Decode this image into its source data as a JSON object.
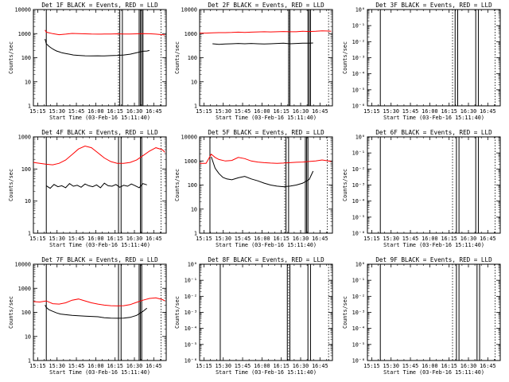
{
  "figure": {
    "xlabel": "Start Time (03-Feb-16 15:11:40)",
    "ylabel": "Counts/sec",
    "time_ticks": [
      "15:15",
      "15:30",
      "15:45",
      "16:00",
      "16:15",
      "16:30",
      "16:45"
    ],
    "log_ticks_main": [
      "1",
      "10",
      "100",
      "1000",
      "10000"
    ],
    "log_ticks_small": [
      "10⁰",
      "10⁻¹",
      "10⁻²",
      "10⁻³",
      "10⁻⁴",
      "10⁻⁵",
      "10⁻⁶"
    ]
  },
  "chart_data": [
    {
      "type": "line",
      "title": "Det 1F BLACK = Events, RED = LLD",
      "xlabel": "Start Time (03-Feb-16 15:11:40)",
      "ylabel": "Counts/sec",
      "x_unit": "minutes after 15:11:40",
      "xlim": [
        0,
        103
      ],
      "yscale": "log",
      "ylim": [
        1,
        10000
      ],
      "series": [
        {
          "color": "#000000",
          "x": [
            9,
            10,
            12,
            14,
            16,
            18,
            20,
            22,
            25,
            28,
            31,
            35,
            40,
            45,
            50,
            55,
            60,
            65,
            70,
            75,
            80,
            85,
            88,
            90
          ],
          "values": [
            600,
            380,
            300,
            250,
            215,
            190,
            175,
            160,
            150,
            140,
            130,
            125,
            120,
            118,
            120,
            118,
            122,
            125,
            130,
            140,
            160,
            185,
            190,
            200
          ]
        },
        {
          "color": "#ff0000",
          "x": [
            9,
            10,
            15,
            20,
            25,
            30,
            35,
            40,
            45,
            50,
            55,
            60,
            65,
            70,
            75,
            80,
            85,
            90,
            95,
            100,
            102
          ],
          "values": [
            1400,
            1150,
            1000,
            900,
            950,
            1020,
            1000,
            980,
            960,
            950,
            960,
            960,
            980,
            960,
            970,
            980,
            1000,
            990,
            950,
            900,
            880
          ]
        }
      ],
      "vlines_solid": [
        10,
        67,
        69,
        82,
        83,
        84,
        85
      ],
      "vlines_dotted": [
        66,
        99
      ]
    },
    {
      "type": "line",
      "title": "Det 2F BLACK = Events, RED = LLD",
      "xlabel": "Start Time (03-Feb-16 15:11:40)",
      "ylabel": "Counts/sec",
      "x_unit": "minutes after 15:11:40",
      "xlim": [
        0,
        103
      ],
      "yscale": "log",
      "ylim": [
        1,
        10000
      ],
      "series": [
        {
          "color": "#000000",
          "x": [
            10,
            15,
            20,
            25,
            30,
            35,
            40,
            45,
            50,
            55,
            60,
            65,
            70,
            75,
            80,
            85,
            88
          ],
          "values": [
            380,
            360,
            370,
            380,
            390,
            380,
            390,
            380,
            370,
            380,
            390,
            400,
            380,
            390,
            400,
            400,
            410
          ]
        },
        {
          "color": "#ff0000",
          "x": [
            0,
            5,
            10,
            15,
            20,
            25,
            30,
            35,
            40,
            45,
            50,
            55,
            60,
            65,
            70,
            75,
            80,
            85,
            90,
            95,
            100,
            102
          ],
          "values": [
            1050,
            1050,
            1080,
            1100,
            1100,
            1120,
            1150,
            1120,
            1150,
            1180,
            1200,
            1180,
            1200,
            1220,
            1200,
            1200,
            1250,
            1220,
            1250,
            1300,
            1280,
            1250
          ]
        }
      ],
      "vlines_solid": [
        69,
        70,
        84,
        85,
        86
      ],
      "vlines_dotted": [
        69,
        100
      ]
    },
    {
      "type": "line",
      "title": "Det 3F BLACK = Events, RED = LLD",
      "xlabel": "Start Time (03-Feb-16 15:11:40)",
      "ylabel": "Counts/sec",
      "x_unit": "minutes after 15:11:40",
      "xlim": [
        0,
        103
      ],
      "yscale": "log",
      "ylim": [
        1e-06,
        1
      ],
      "series": [],
      "vlines_solid": [
        10,
        68,
        70,
        84,
        86
      ],
      "vlines_dotted": [
        66,
        99
      ]
    },
    {
      "type": "line",
      "title": "Det 4F BLACK = Events, RED = LLD",
      "xlabel": "Start Time (03-Feb-16 15:11:40)",
      "ylabel": "Counts/sec",
      "x_unit": "minutes after 15:11:40",
      "xlim": [
        0,
        103
      ],
      "yscale": "log",
      "ylim": [
        1,
        1000
      ],
      "series": [
        {
          "color": "#000000",
          "x": [
            10,
            13,
            16,
            19,
            22,
            25,
            28,
            31,
            34,
            37,
            40,
            43,
            46,
            49,
            52,
            55,
            58,
            61,
            64,
            67,
            70,
            73,
            76,
            79,
            82,
            85,
            88
          ],
          "values": [
            30,
            25,
            33,
            28,
            30,
            26,
            35,
            29,
            31,
            27,
            34,
            30,
            28,
            32,
            26,
            36,
            30,
            29,
            33,
            27,
            31,
            29,
            34,
            30,
            26,
            35,
            32
          ]
        },
        {
          "color": "#ff0000",
          "x": [
            0,
            5,
            10,
            15,
            20,
            25,
            30,
            35,
            40,
            45,
            50,
            55,
            60,
            65,
            70,
            75,
            80,
            85,
            90,
            95,
            100,
            102
          ],
          "values": [
            160,
            150,
            140,
            135,
            150,
            190,
            280,
            420,
            520,
            460,
            320,
            220,
            170,
            150,
            150,
            160,
            190,
            260,
            360,
            460,
            400,
            330
          ]
        }
      ],
      "vlines_solid": [
        10,
        66,
        68,
        83,
        84
      ],
      "vlines_dotted": [
        66,
        99
      ]
    },
    {
      "type": "line",
      "title": "Det 5F BLACK = Events, RED = LLD",
      "xlabel": "Start Time (03-Feb-16 15:11:40)",
      "ylabel": "Counts/sec",
      "x_unit": "minutes after 15:11:40",
      "xlim": [
        0,
        103
      ],
      "yscale": "log",
      "ylim": [
        1,
        10000
      ],
      "series": [
        {
          "color": "#000000",
          "x": [
            9,
            12,
            15,
            18,
            21,
            25,
            30,
            35,
            40,
            45,
            50,
            55,
            60,
            65,
            70,
            75,
            80,
            85,
            88
          ],
          "values": [
            1500,
            500,
            300,
            210,
            180,
            165,
            200,
            230,
            180,
            150,
            120,
            100,
            90,
            85,
            90,
            100,
            120,
            170,
            380
          ]
        },
        {
          "color": "#ff0000",
          "x": [
            0,
            5,
            9,
            12,
            15,
            20,
            25,
            30,
            35,
            40,
            45,
            50,
            55,
            60,
            65,
            70,
            75,
            80,
            85,
            90,
            95,
            100,
            102
          ],
          "values": [
            800,
            800,
            1900,
            1400,
            1150,
            1000,
            1050,
            1400,
            1250,
            1000,
            900,
            850,
            820,
            800,
            820,
            850,
            880,
            900,
            950,
            1000,
            1100,
            1000,
            950
          ]
        }
      ],
      "vlines_solid": [
        8,
        67,
        69,
        82,
        83,
        84
      ],
      "vlines_dotted": [
        66,
        99
      ]
    },
    {
      "type": "line",
      "title": "Det 6F BLACK = Events, RED = LLD",
      "xlabel": "Start Time (03-Feb-16 15:11:40)",
      "ylabel": "Counts/sec",
      "x_unit": "minutes after 15:11:40",
      "xlim": [
        0,
        103
      ],
      "yscale": "log",
      "ylim": [
        1e-06,
        1
      ],
      "series": [],
      "vlines_solid": [
        10,
        69,
        71,
        84,
        86
      ],
      "vlines_dotted": [
        66,
        99
      ]
    },
    {
      "type": "line",
      "title": "Det 7F BLACK = Events, RED = LLD",
      "xlabel": "Start Time (03-Feb-16 15:11:40)",
      "ylabel": "Counts/sec",
      "x_unit": "minutes after 15:11:40",
      "xlim": [
        0,
        103
      ],
      "yscale": "log",
      "ylim": [
        1,
        10000
      ],
      "series": [
        {
          "color": "#000000",
          "x": [
            9,
            10,
            12,
            15,
            18,
            21,
            25,
            30,
            35,
            40,
            45,
            50,
            55,
            60,
            65,
            70,
            75,
            80,
            85,
            88
          ],
          "values": [
            200,
            160,
            130,
            110,
            95,
            85,
            80,
            75,
            72,
            70,
            68,
            66,
            60,
            58,
            57,
            58,
            62,
            75,
            110,
            150
          ]
        },
        {
          "color": "#ff0000",
          "x": [
            0,
            5,
            10,
            15,
            20,
            25,
            30,
            35,
            40,
            45,
            50,
            55,
            60,
            65,
            70,
            75,
            80,
            85,
            90,
            95,
            100,
            102
          ],
          "values": [
            280,
            270,
            300,
            230,
            220,
            250,
            320,
            360,
            300,
            250,
            220,
            200,
            190,
            185,
            190,
            210,
            260,
            320,
            380,
            400,
            340,
            300
          ]
        }
      ],
      "vlines_solid": [
        10,
        66,
        68,
        82,
        83,
        84
      ],
      "vlines_dotted": [
        66,
        99
      ]
    },
    {
      "type": "line",
      "title": "Det 8F BLACK = Events, RED = LLD",
      "xlabel": "Start Time (03-Feb-16 15:11:40)",
      "ylabel": "Counts/sec",
      "x_unit": "minutes after 15:11:40",
      "xlim": [
        0,
        103
      ],
      "yscale": "log",
      "ylim": [
        1e-06,
        1
      ],
      "series": [],
      "vlines_solid": [
        16,
        68,
        70,
        84,
        86
      ],
      "vlines_dotted": [
        69,
        100
      ]
    },
    {
      "type": "line",
      "title": "Det 9F BLACK = Events, RED = LLD",
      "xlabel": "Start Time (03-Feb-16 15:11:40)",
      "ylabel": "Counts/sec",
      "x_unit": "minutes after 15:11:40",
      "xlim": [
        0,
        103
      ],
      "yscale": "log",
      "ylim": [
        1e-06,
        1
      ],
      "series": [],
      "vlines_solid": [
        10,
        69,
        71,
        85,
        87
      ],
      "vlines_dotted": [
        66,
        99
      ]
    }
  ]
}
